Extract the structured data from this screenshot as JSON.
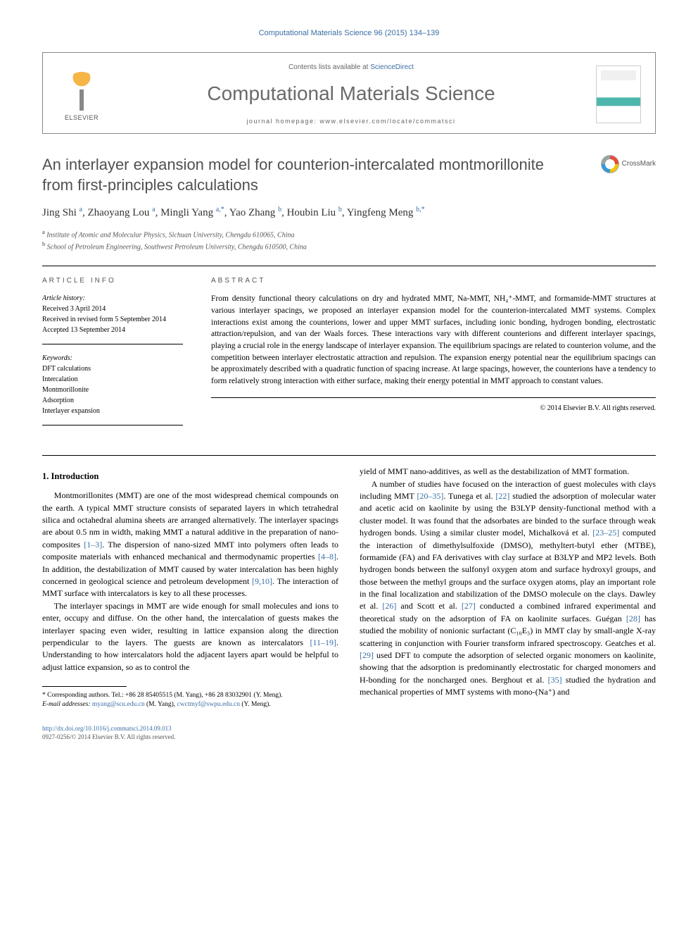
{
  "journal_ref": "Computational Materials Science 96 (2015) 134–139",
  "header": {
    "contents_prefix": "Contents lists available at ",
    "contents_link": "ScienceDirect",
    "journal_title": "Computational Materials Science",
    "homepage_prefix": "journal homepage: ",
    "homepage_url": "www.elsevier.com/locate/commatsci",
    "publisher": "ELSEVIER"
  },
  "crossmark_label": "CrossMark",
  "title": "An interlayer expansion model for counterion-intercalated montmorillonite from first-principles calculations",
  "authors_html": "Jing Shi <sup>a</sup>, Zhaoyang Lou <sup>a</sup>, Mingli Yang <sup>a,*</sup>, Yao Zhang <sup>b</sup>, Houbin Liu <sup>b</sup>, Yingfeng Meng <sup>b,*</sup>",
  "affiliations": [
    {
      "sup": "a",
      "text": "Institute of Atomic and Molecular Physics, Sichuan University, Chengdu 610065, China"
    },
    {
      "sup": "b",
      "text": "School of Petroleum Engineering, Southwest Petroleum University, Chengdu 610500, China"
    }
  ],
  "article_info_heading": "ARTICLE INFO",
  "abstract_heading": "ABSTRACT",
  "history": {
    "label": "Article history:",
    "received": "Received 3 April 2014",
    "revised": "Received in revised form 5 September 2014",
    "accepted": "Accepted 13 September 2014"
  },
  "keywords": {
    "label": "Keywords:",
    "items": [
      "DFT calculations",
      "Intercalation",
      "Montmorillonite",
      "Adsorption",
      "Interlayer expansion"
    ]
  },
  "abstract": "From density functional theory calculations on dry and hydrated MMT, Na-MMT, NH₄⁺-MMT, and formamide-MMT structures at various interlayer spacings, we proposed an interlayer expansion model for the counterion-intercalated MMT systems. Complex interactions exist among the counterions, lower and upper MMT surfaces, including ionic bonding, hydrogen bonding, electrostatic attraction/repulsion, and van der Waals forces. These interactions vary with different counterions and different interlayer spacings, playing a crucial role in the energy landscape of interlayer expansion. The equilibrium spacings are related to counterion volume, and the competition between interlayer electrostatic attraction and repulsion. The expansion energy potential near the equilibrium spacings can be approximately described with a quadratic function of spacing increase. At large spacings, however, the counterions have a tendency to form relatively strong interaction with either surface, making their energy potential in MMT approach to constant values.",
  "copyright": "© 2014 Elsevier B.V. All rights reserved.",
  "section1_heading": "1. Introduction",
  "para1": "Montmorillonites (MMT) are one of the most widespread chemical compounds on the earth. A typical MMT structure consists of separated layers in which tetrahedral silica and octahedral alumina sheets are arranged alternatively. The interlayer spacings are about 0.5 nm in width, making MMT a natural additive in the preparation of nano-composites ",
  "ref1": "[1–3]",
  "para1b": ". The dispersion of nano-sized MMT into polymers often leads to composite materials with enhanced mechanical and thermodynamic properties ",
  "ref2": "[4–8]",
  "para1c": ". In addition, the destabilization of MMT caused by water intercalation has been highly concerned in geological science and petroleum development ",
  "ref3": "[9,10]",
  "para1d": ". The interaction of MMT surface with intercalators is key to all these processes.",
  "para2a": "The interlayer spacings in MMT are wide enough for small molecules and ions to enter, occupy and diffuse. On the other hand, the intercalation of guests makes the interlayer spacing even wider, resulting in lattice expansion along the direction perpendicular to the layers. The guests are known as intercalators ",
  "ref4": "[11–19]",
  "para2b": ". Understanding to how intercalators hold the adjacent layers apart would be helpful to adjust lattice expansion, so as to control the ",
  "para2c_col2": "yield of MMT nano-additives, as well as the destabilization of MMT formation.",
  "para3a": "A number of studies have focused on the interaction of guest molecules with clays including MMT ",
  "ref5": "[20–35]",
  "para3b": ". Tunega et al. ",
  "ref6": "[22]",
  "para3c": " studied the adsorption of molecular water and acetic acid on kaolinite by using the B3LYP density-functional method with a cluster model. It was found that the adsorbates are binded to the surface through weak hydrogen bonds. Using a similar cluster model, Michalková et al. ",
  "ref7": "[23–25]",
  "para3d": " computed the interaction of dimethylsulfoxide (DMSO), methyltert-butyl ether (MTBE), formamide (FA) and FA derivatives with clay surface at B3LYP and MP2 levels. Both hydrogen bonds between the sulfonyl oxygen atom and surface hydroxyl groups, and those between the methyl groups and the surface oxygen atoms, play an important role in the final localization and stabilization of the DMSO molecule on the clays. Dawley et al. ",
  "ref8": "[26]",
  "para3e": " and Scott et al. ",
  "ref9": "[27]",
  "para3f": " conducted a combined infrared experimental and theoretical study on the adsorption of FA on kaolinite surfaces. Guégan ",
  "ref10": "[28]",
  "para3g": " has studied the mobility of nonionic surfactant (C₁₀E₃) in MMT clay by small-angle X-ray scattering in conjunction with Fourier transform infrared spectroscopy. Geatches et al. ",
  "ref11": "[29]",
  "para3h": " used DFT to compute the adsorption of selected organic monomers on kaolinite, showing that the adsorption is predominantly electrostatic for charged monomers and H-bonding for the noncharged ones. Berghout et al. ",
  "ref12": "[35]",
  "para3i": " studied the hydration and mechanical properties of MMT systems with mono-(Na⁺) and",
  "footnotes": {
    "corr": "* Corresponding authors. Tel.: +86 28 85405515 (M. Yang), +86 28 83032901 (Y. Meng).",
    "email_label": "E-mail addresses: ",
    "email1": "myang@scu.edu.cn",
    "email1_who": " (M. Yang), ",
    "email2": "cwctmyf@swpu.edu.cn",
    "email2_who": " (Y. Meng)."
  },
  "doi": {
    "url": "http://dx.doi.org/10.1016/j.commatsci.2014.09.013",
    "issn_line": "0927-0256/© 2014 Elsevier B.V. All rights reserved."
  }
}
